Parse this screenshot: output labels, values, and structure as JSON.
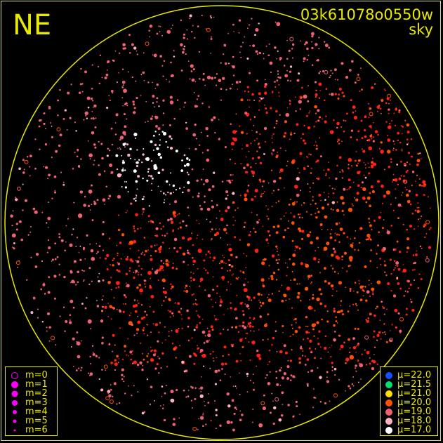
{
  "header": {
    "orientation": "NE",
    "field_id": "03k61078o0550w",
    "mode": "sky"
  },
  "colors": {
    "frame": "#e8e800",
    "background": "#000000",
    "magnitude_symbol": "#ff00ff"
  },
  "magnitude_legend": [
    {
      "label": "m=0",
      "style": "ring"
    },
    {
      "label": "m=1"
    },
    {
      "label": "m=2"
    },
    {
      "label": "m=3"
    },
    {
      "label": "m=4"
    },
    {
      "label": "m=5"
    },
    {
      "label": "m=6"
    }
  ],
  "surface_brightness_legend": [
    {
      "label": "μ=22.0",
      "color": "#1050ff"
    },
    {
      "label": "μ=21.5",
      "color": "#00e070"
    },
    {
      "label": "μ=21.0",
      "color": "#ffe000"
    },
    {
      "label": "μ=20.0",
      "color": "#ff5000"
    },
    {
      "label": "μ=19.0",
      "color": "#f06070"
    },
    {
      "label": "μ=18.0",
      "color": "#ffb0c0"
    },
    {
      "label": "μ=17.0",
      "color": "#ffffff"
    }
  ],
  "chart_data": {
    "type": "scatter",
    "title": "03k61078o0550w",
    "subtitle": "sky",
    "projection": "circular all-sky",
    "legend_placement": [
      "bottom-left",
      "bottom-right"
    ],
    "grid": false
  }
}
